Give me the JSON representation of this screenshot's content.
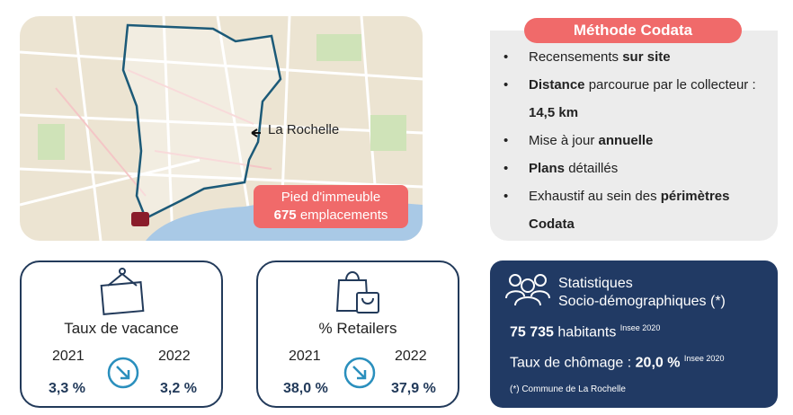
{
  "map": {
    "place_label": "La Rochelle",
    "badge": {
      "line1": "Pied d'immeuble",
      "count": "675",
      "unit": "emplacements"
    }
  },
  "method": {
    "title": "Méthode Codata",
    "bullets": [
      [
        "Recensements ",
        "sur site"
      ],
      [
        "Distance",
        " parcourue par le collecteur : ",
        "14,5 km"
      ],
      [
        "Mise à jour ",
        "annuelle"
      ],
      [
        "Plans",
        " détaillés"
      ],
      [
        "Exhaustif au sein des ",
        "périmètres Codata"
      ]
    ]
  },
  "cards": [
    {
      "title": "Taux de vacance",
      "years": [
        "2021",
        "2022"
      ],
      "values": [
        "3,3 %",
        "3,2 %"
      ]
    },
    {
      "title": "% Retailers",
      "years": [
        "2021",
        "2022"
      ],
      "values": [
        "38,0 %",
        "37,9 %"
      ]
    }
  ],
  "stats": {
    "title_line1": "Statistiques",
    "title_line2": "Socio-démographiques (*)",
    "population": "75 735",
    "population_unit": "habitants",
    "population_source": "Insee 2020",
    "unemployment_label": "Taux de chômage : ",
    "unemployment_value": "20,0 %",
    "unemployment_source": "Insee 2020",
    "footnote": "(*) Commune de La Rochelle"
  }
}
